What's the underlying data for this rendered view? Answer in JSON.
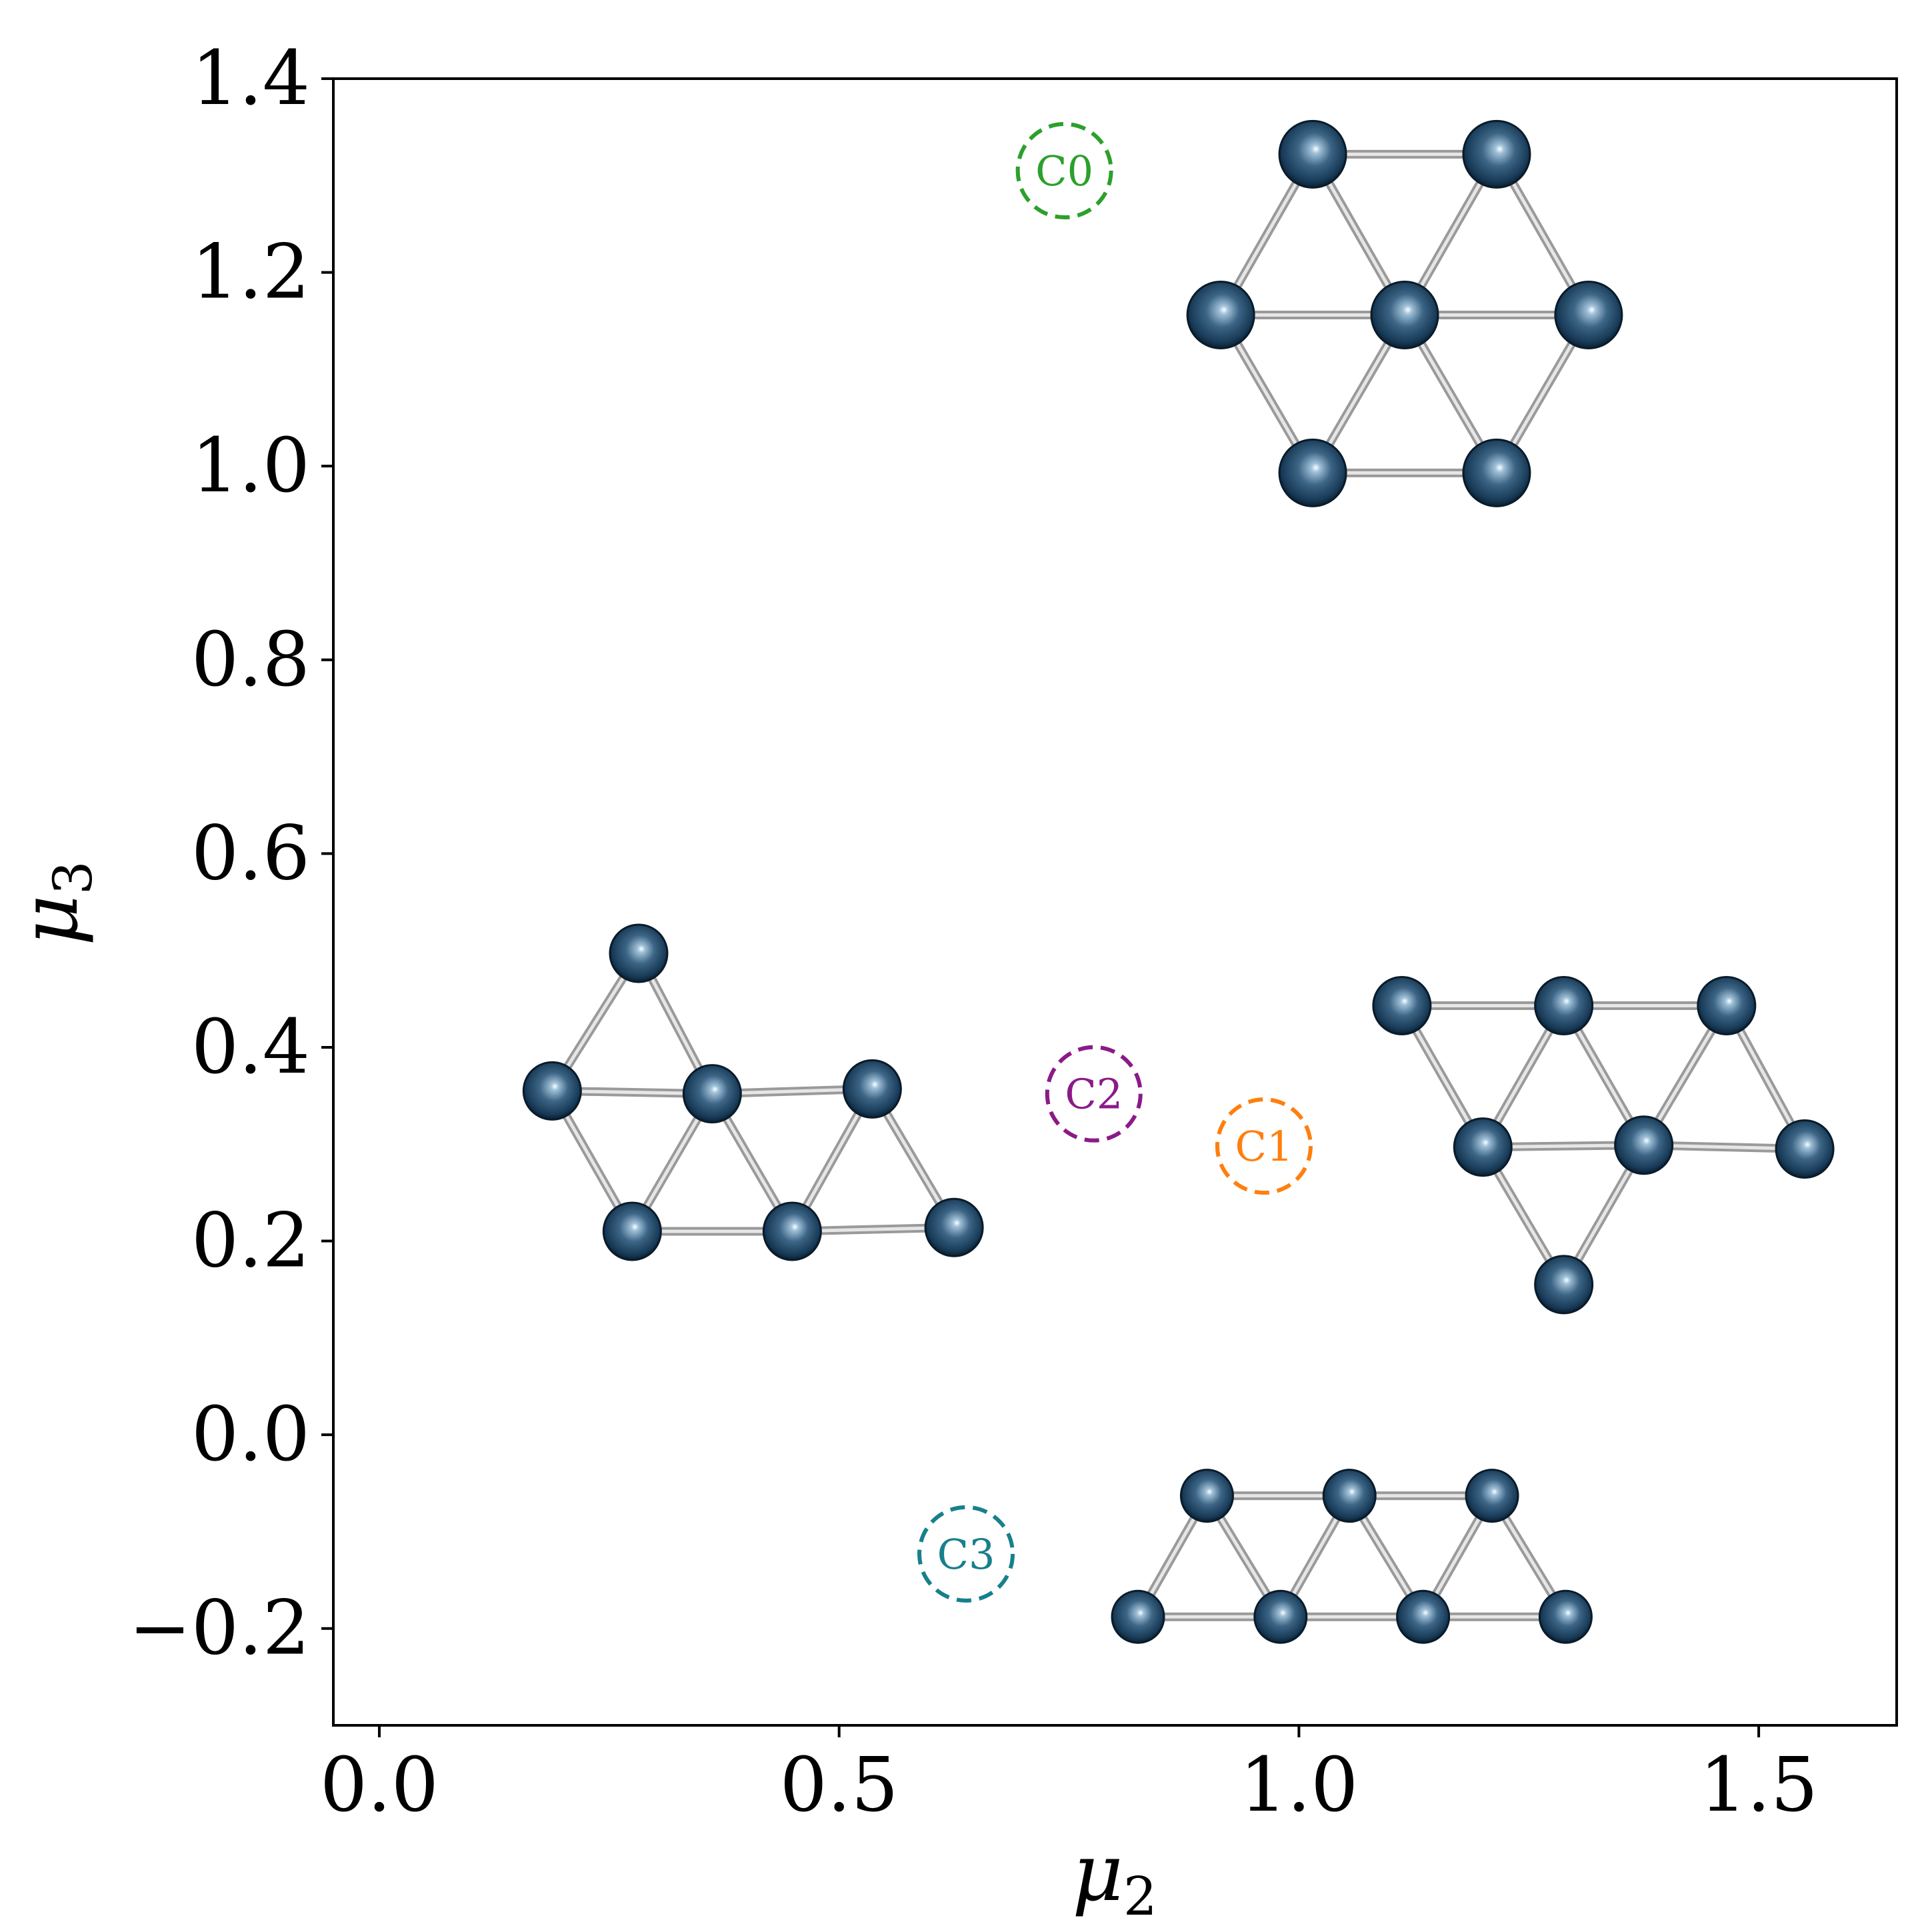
{
  "chart_data": {
    "type": "scatter",
    "xlabel": "μ",
    "xlabel_subscript": "2",
    "ylabel": "μ",
    "ylabel_subscript": "3",
    "xlim": [
      -0.05,
      1.65
    ],
    "ylim": [
      -0.3,
      1.4
    ],
    "xticks": [
      0.0,
      0.5,
      1.0,
      1.5
    ],
    "xtick_labels": [
      "0.0",
      "0.5",
      "1.0",
      "1.5"
    ],
    "yticks": [
      -0.2,
      0.0,
      0.2,
      0.4,
      0.6,
      0.8,
      1.0,
      1.2,
      1.4
    ],
    "ytick_labels": [
      "−0.2",
      "0.0",
      "0.2",
      "0.4",
      "0.6",
      "0.8",
      "1.0",
      "1.2",
      "1.4"
    ],
    "grid": false,
    "points": [
      {
        "label": "C0",
        "x": 0.745,
        "y": 1.305,
        "color": "#2ca02c"
      },
      {
        "label": "C1",
        "x": 0.962,
        "y": 0.298,
        "color": "#ff7f0e"
      },
      {
        "label": "C2",
        "x": 0.777,
        "y": 0.352,
        "color": "#8b1a89"
      },
      {
        "label": "C3",
        "x": 0.638,
        "y": -0.123,
        "color": "#17808c"
      }
    ],
    "structures": [
      {
        "name": "hexagon cluster",
        "atoms": [
          [
            1.015,
            1.322
          ],
          [
            1.215,
            1.322
          ],
          [
            0.915,
            1.156
          ],
          [
            1.115,
            1.156
          ],
          [
            1.315,
            1.156
          ],
          [
            1.015,
            0.993
          ],
          [
            1.215,
            0.993
          ]
        ],
        "bonds": [
          [
            0,
            1
          ],
          [
            0,
            2
          ],
          [
            0,
            3
          ],
          [
            1,
            3
          ],
          [
            1,
            4
          ],
          [
            2,
            3
          ],
          [
            3,
            4
          ],
          [
            2,
            5
          ],
          [
            3,
            5
          ],
          [
            3,
            6
          ],
          [
            4,
            6
          ],
          [
            5,
            6
          ]
        ]
      },
      {
        "name": "left cluster",
        "atoms": [
          [
            0.282,
            0.497
          ],
          [
            0.188,
            0.355
          ],
          [
            0.362,
            0.352
          ],
          [
            0.536,
            0.357
          ],
          [
            0.275,
            0.21
          ],
          [
            0.449,
            0.21
          ],
          [
            0.625,
            0.214
          ]
        ],
        "bonds": [
          [
            0,
            1
          ],
          [
            0,
            2
          ],
          [
            1,
            2
          ],
          [
            2,
            3
          ],
          [
            1,
            4
          ],
          [
            2,
            4
          ],
          [
            2,
            5
          ],
          [
            3,
            5
          ],
          [
            4,
            5
          ],
          [
            5,
            6
          ],
          [
            3,
            6
          ]
        ]
      },
      {
        "name": "right cluster",
        "atoms": [
          [
            1.112,
            0.443
          ],
          [
            1.288,
            0.443
          ],
          [
            1.465,
            0.443
          ],
          [
            1.2,
            0.297
          ],
          [
            1.375,
            0.299
          ],
          [
            1.55,
            0.295
          ],
          [
            1.288,
            0.155
          ]
        ],
        "bonds": [
          [
            0,
            1
          ],
          [
            1,
            2
          ],
          [
            0,
            3
          ],
          [
            1,
            3
          ],
          [
            1,
            4
          ],
          [
            2,
            4
          ],
          [
            3,
            4
          ],
          [
            4,
            5
          ],
          [
            2,
            5
          ],
          [
            3,
            6
          ],
          [
            4,
            6
          ]
        ]
      },
      {
        "name": "bottom cluster",
        "atoms": [
          [
            0.9,
            -0.063
          ],
          [
            1.055,
            -0.063
          ],
          [
            1.21,
            -0.063
          ],
          [
            0.825,
            -0.188
          ],
          [
            0.98,
            -0.188
          ],
          [
            1.135,
            -0.188
          ],
          [
            1.29,
            -0.188
          ]
        ],
        "bonds": [
          [
            0,
            1
          ],
          [
            1,
            2
          ],
          [
            3,
            4
          ],
          [
            4,
            5
          ],
          [
            5,
            6
          ],
          [
            3,
            0
          ],
          [
            0,
            4
          ],
          [
            4,
            1
          ],
          [
            1,
            5
          ],
          [
            5,
            2
          ],
          [
            2,
            6
          ]
        ]
      }
    ]
  }
}
